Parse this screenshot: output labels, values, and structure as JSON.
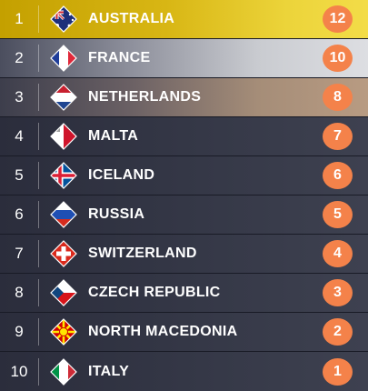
{
  "scoreboard": {
    "rows": [
      {
        "rank": "1",
        "country": "AUSTRALIA",
        "points": "12",
        "flag": "australia-flag-icon"
      },
      {
        "rank": "2",
        "country": "FRANCE",
        "points": "10",
        "flag": "france-flag-icon"
      },
      {
        "rank": "3",
        "country": "NETHERLANDS",
        "points": "8",
        "flag": "netherlands-flag-icon"
      },
      {
        "rank": "4",
        "country": "MALTA",
        "points": "7",
        "flag": "malta-flag-icon"
      },
      {
        "rank": "5",
        "country": "ICELAND",
        "points": "6",
        "flag": "iceland-flag-icon"
      },
      {
        "rank": "6",
        "country": "RUSSIA",
        "points": "5",
        "flag": "russia-flag-icon"
      },
      {
        "rank": "7",
        "country": "SWITZERLAND",
        "points": "4",
        "flag": "switzerland-flag-icon"
      },
      {
        "rank": "8",
        "country": "CZECH REPUBLIC",
        "points": "3",
        "flag": "czech-flag-icon"
      },
      {
        "rank": "9",
        "country": "NORTH MACEDONIA",
        "points": "2",
        "flag": "north-macedonia-flag-icon"
      },
      {
        "rank": "10",
        "country": "ITALY",
        "points": "1",
        "flag": "italy-flag-icon"
      }
    ]
  },
  "colors": {
    "points_badge": "#f4824a",
    "first_place": "#d8b614",
    "second_place": "#c9cbd0",
    "third_place": "#a58d78",
    "row_background": "#343746"
  }
}
